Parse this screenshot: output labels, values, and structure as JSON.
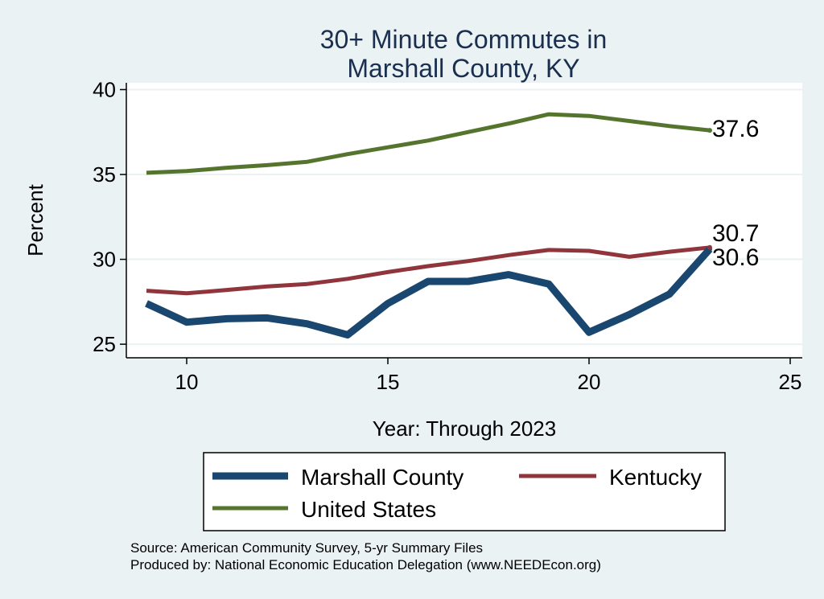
{
  "chart_data": {
    "type": "line",
    "title": [
      "30+ Minute Commutes in",
      "Marshall County, KY"
    ],
    "xlabel": "Year: Through 2023",
    "ylabel": "Percent",
    "xlim": [
      8.5,
      25.3
    ],
    "ylim": [
      24.2,
      40.4
    ],
    "xticks": [
      10,
      15,
      20,
      25
    ],
    "yticks": [
      25,
      30,
      35,
      40
    ],
    "grid": true,
    "legend_position": "bottom",
    "x": [
      9,
      10,
      11,
      12,
      13,
      14,
      15,
      16,
      17,
      18,
      19,
      20,
      21,
      22,
      23
    ],
    "series": [
      {
        "name": "Marshall County",
        "color": "#1a476f",
        "values": [
          27.4,
          26.3,
          26.5,
          26.55,
          26.2,
          25.55,
          27.4,
          28.7,
          28.7,
          29.1,
          28.55,
          25.7,
          26.75,
          27.95,
          30.6
        ],
        "end_label": "30.6"
      },
      {
        "name": "Kentucky",
        "color": "#90353b",
        "values": [
          28.15,
          28.0,
          28.2,
          28.4,
          28.55,
          28.85,
          29.25,
          29.6,
          29.9,
          30.25,
          30.55,
          30.5,
          30.15,
          30.45,
          30.7
        ],
        "end_label": "30.7"
      },
      {
        "name": "United States",
        "color": "#55752f",
        "values": [
          35.1,
          35.2,
          35.4,
          35.55,
          35.75,
          36.2,
          36.6,
          37.0,
          37.5,
          38.0,
          38.55,
          38.45,
          38.15,
          37.85,
          37.6
        ],
        "end_label": "37.6"
      }
    ]
  },
  "notes": [
    "Source: American Community Survey, 5-yr Summary Files",
    "Produced by: National Economic Education Delegation (www.NEEDEcon.org)"
  ]
}
